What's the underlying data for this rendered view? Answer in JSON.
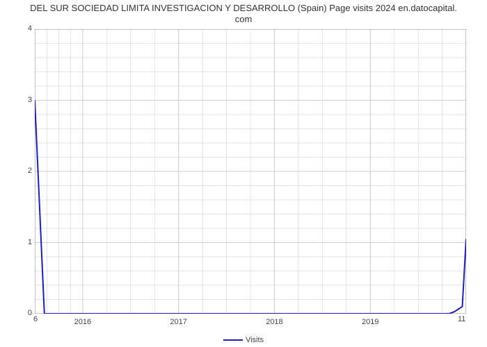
{
  "chart": {
    "type": "line",
    "title_line1": "DEL SUR SOCIEDAD LIMITA INVESTIGACION Y DESARROLLO (Spain) Page visits 2024 en.datocapital.",
    "title_line2": "com",
    "title_fontsize": 13,
    "title_color": "#333333",
    "background_color": "#ffffff",
    "plot_border_color": "#888888",
    "grid_color": "#cccccc",
    "axis_label_color": "#444444",
    "axis_fontsize": 11,
    "y": {
      "min": 0,
      "max": 4,
      "ticks": [
        0,
        1,
        2,
        3,
        4
      ],
      "minor_between": 4
    },
    "x": {
      "min": 2015.5,
      "max": 2020.0,
      "tick_labels": [
        "2016",
        "2017",
        "2018",
        "2019"
      ],
      "tick_positions": [
        2016,
        2017,
        2018,
        2019
      ],
      "minor_between": 3
    },
    "corner_left": "6",
    "corner_right": "11",
    "series": {
      "name": "Visits",
      "color": "#1720c8",
      "line_width": 2,
      "points": [
        [
          2015.5,
          3.0
        ],
        [
          2015.6,
          0.0
        ],
        [
          2019.82,
          0.0
        ],
        [
          2019.88,
          0.03
        ],
        [
          2019.96,
          0.1
        ],
        [
          2020.0,
          1.05
        ]
      ]
    },
    "legend": {
      "label": "Visits",
      "line_color": "#1720c8",
      "text_color": "#444444",
      "fontsize": 11
    }
  }
}
